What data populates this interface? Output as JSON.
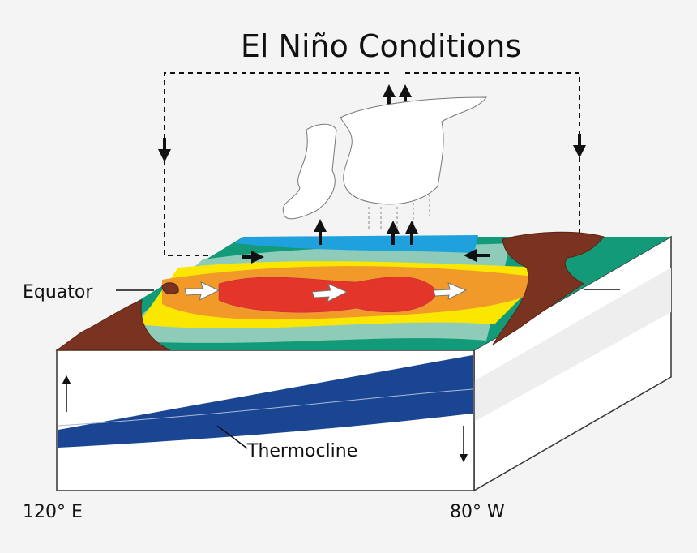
{
  "title": "El Niño Conditions",
  "labels": {
    "equator": "Equator",
    "thermocline": "Thermocline",
    "west": "120° E",
    "east": "80° W"
  }
}
